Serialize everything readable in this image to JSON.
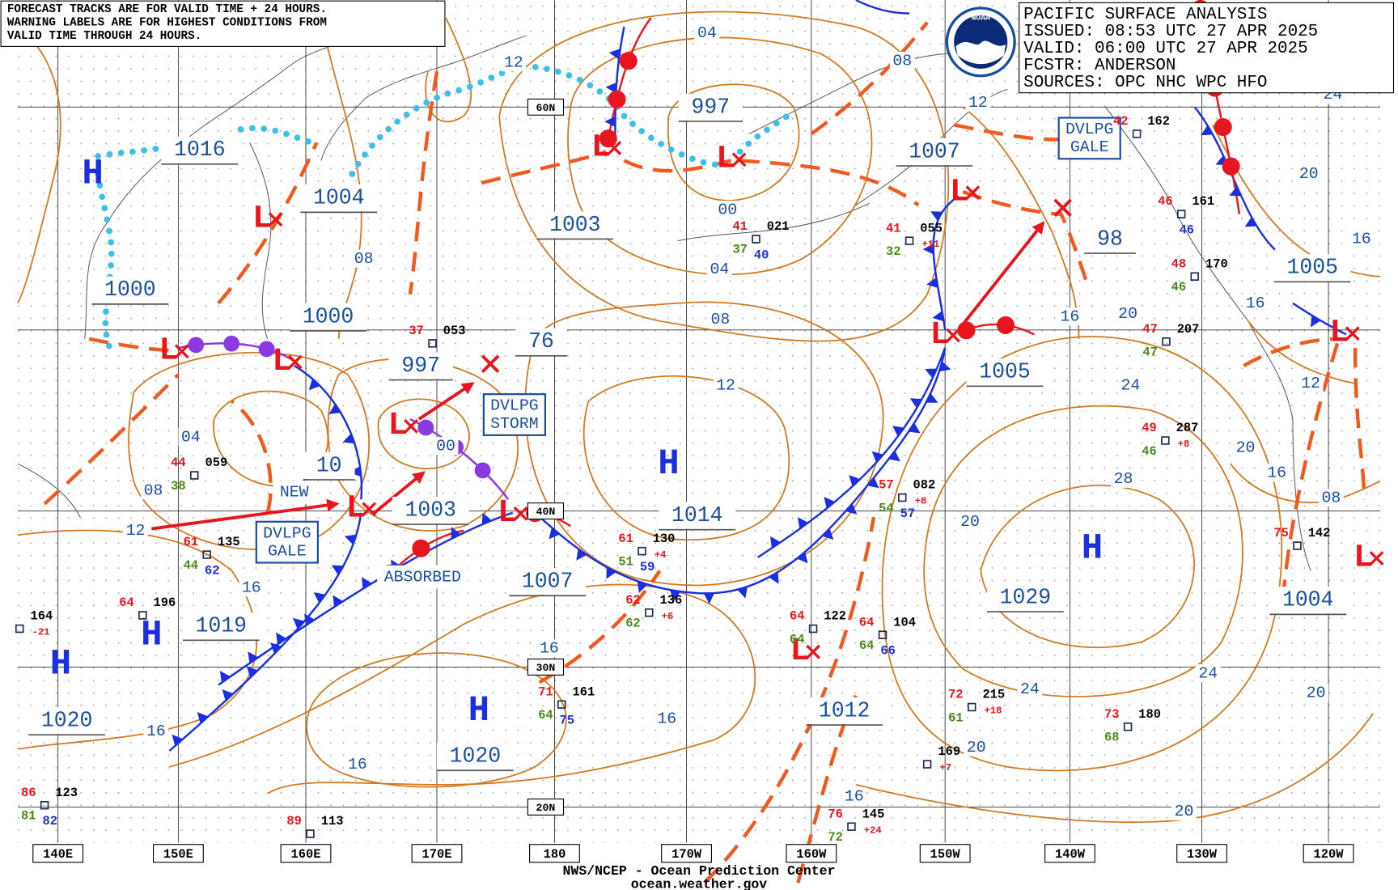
{
  "notice": [
    "FORECAST TRACKS ARE FOR VALID TIME + 24 HOURS.",
    "WARNING LABELS ARE FOR HIGHEST CONDITIONS FROM",
    "VALID TIME THROUGH 24 HOURS."
  ],
  "info": [
    "PACIFIC SURFACE ANALYSIS",
    "ISSUED: 08:53 UTC 27 APR 2025",
    "VALID:  06:00 UTC 27 APR 2025",
    "FCSTR:  ANDERSON",
    "SOURCES: OPC NHC WPC HFO"
  ],
  "logo": "NOAA",
  "footer": [
    "NWS/NCEP - Ocean Prediction Center",
    "ocean.weather.gov"
  ],
  "lon_labels": [
    "140E",
    "150E",
    "160E",
    "170E",
    "180",
    "170W",
    "160W",
    "150W",
    "140W",
    "130W",
    "120W"
  ],
  "lat_labels": [
    "60N",
    "40N",
    "30N",
    "20N"
  ],
  "centers": [
    "H",
    "H",
    "H",
    "H",
    "H",
    "H",
    "L",
    "L",
    "L",
    "L",
    "L",
    "L",
    "L",
    "L",
    "L",
    "L",
    "L",
    "L",
    "L"
  ],
  "pressure_labels": [
    "1016",
    "1004",
    "1000",
    "1000",
    "997",
    "76",
    "1003",
    "1003",
    "997",
    "1007",
    "1005",
    "98",
    "1005",
    "1014",
    "1007",
    "1019",
    "1020",
    "1020",
    "1029",
    "1012",
    "1004",
    "10"
  ],
  "isobar_labels": [
    "12",
    "04",
    "08",
    "00",
    "04",
    "08",
    "12",
    "08",
    "04",
    "08",
    "12",
    "16",
    "16",
    "16",
    "16",
    "16",
    "00",
    "12",
    "16",
    "20",
    "24",
    "28",
    "20",
    "24",
    "20",
    "20",
    "20",
    "16",
    "24",
    "20",
    "16",
    "16",
    "12",
    "20",
    "16",
    "08",
    "24"
  ],
  "annotations": [
    [
      "DVLPG",
      "GALE"
    ],
    [
      "DVLPG",
      "STORM"
    ],
    [
      "DVLPG",
      "GALE"
    ],
    [
      "NEW"
    ],
    [
      "ABSORBED"
    ]
  ],
  "stations": [
    {
      "t": "44",
      "p": "059",
      "d": "38"
    },
    {
      "t": "37",
      "p": "053"
    },
    {
      "t": "61",
      "p": "135",
      "d": "44",
      "s": "62"
    },
    {
      "t": "64",
      "p": "196"
    },
    {
      "p": "164",
      "tend": "-21"
    },
    {
      "t": "61",
      "p": "130",
      "d": "51",
      "s": "59",
      "tend": "+4"
    },
    {
      "t": "62",
      "p": "136",
      "d": "62",
      "tend": "+6"
    },
    {
      "t": "41",
      "p": "021",
      "d": "37",
      "s": "40"
    },
    {
      "t": "57",
      "p": "082",
      "d": "54",
      "s": "57",
      "tend": "+8"
    },
    {
      "t": "41",
      "p": "055",
      "d": "32",
      "tend": "+11"
    },
    {
      "t": "47",
      "p": "207",
      "d": "47"
    },
    {
      "t": "49",
      "p": "287",
      "d": "46",
      "tend": "+8"
    },
    {
      "t": "64",
      "p": "104",
      "d": "64",
      "s": "66"
    },
    {
      "t": "72",
      "p": "215",
      "d": "61",
      "tend": "+18"
    },
    {
      "t": "73",
      "p": "180",
      "d": "68"
    },
    {
      "t": "71",
      "p": "161",
      "d": "64",
      "s": "75"
    },
    {
      "t": "76",
      "p": "145",
      "d": "72",
      "tend": "+24"
    },
    {
      "t": "86",
      "p": "123",
      "d": "81",
      "s": "82"
    },
    {
      "t": "89",
      "p": "113"
    },
    {
      "p": "169",
      "tend": "+7"
    },
    {
      "t": "48",
      "p": "170",
      "d": "46"
    },
    {
      "t": "42",
      "p": "162"
    },
    {
      "t": "46",
      "p": "161",
      "s": "46"
    },
    {
      "t": "75",
      "p": "142"
    },
    {
      "t": "64",
      "p": "122",
      "d": "64"
    }
  ]
}
